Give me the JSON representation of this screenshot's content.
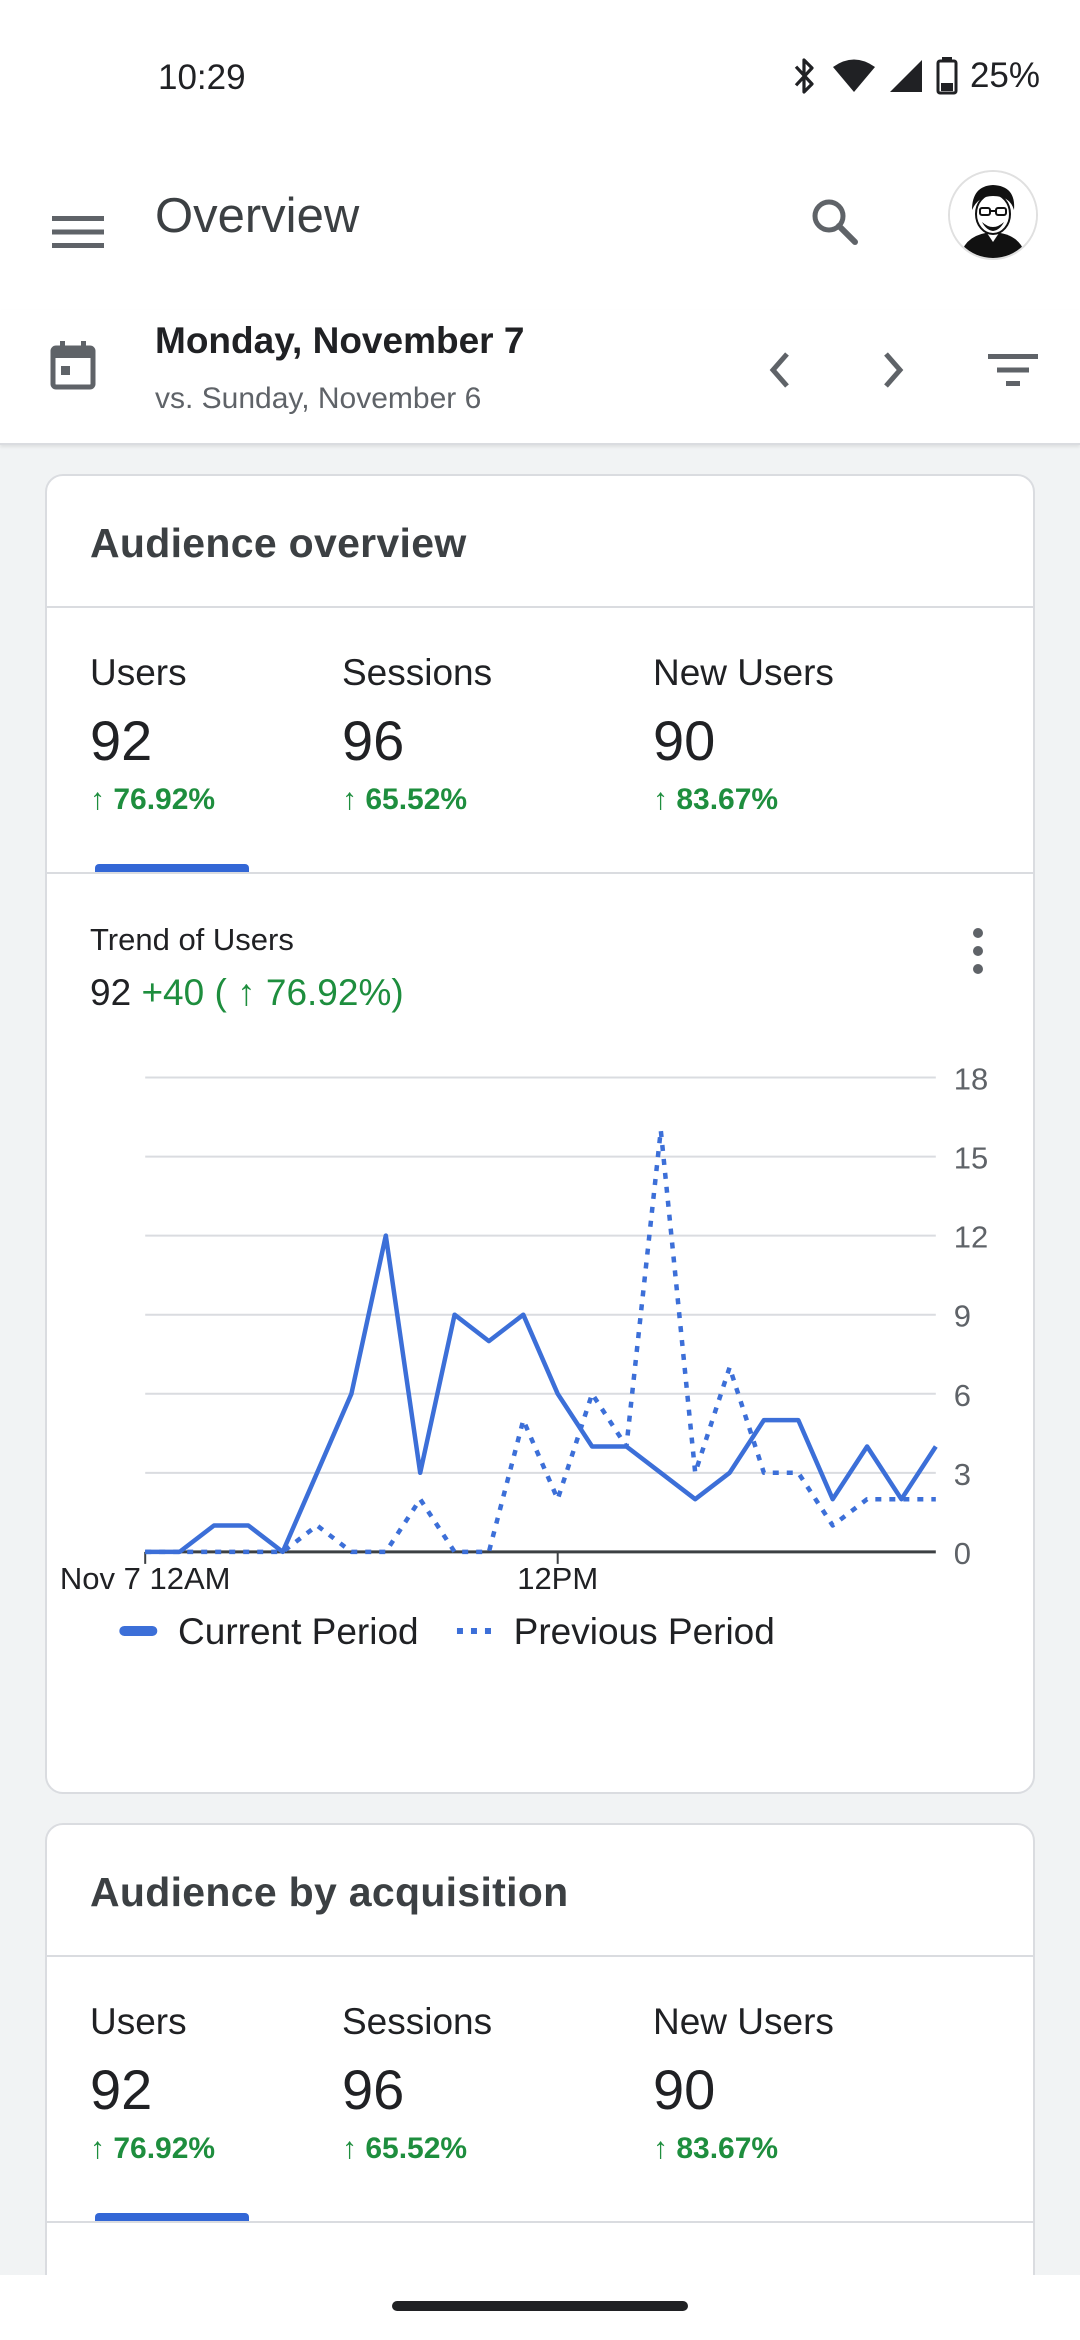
{
  "status_bar": {
    "time": "10:29",
    "battery": "25%"
  },
  "app_bar": {
    "title": "Overview"
  },
  "date_bar": {
    "date": "Monday, November 7",
    "comparison": "vs. Sunday, November 6"
  },
  "audience_overview": {
    "title": "Audience overview",
    "metrics": [
      {
        "label": "Users",
        "value": "92",
        "change": "↑ 76.92%"
      },
      {
        "label": "Sessions",
        "value": "96",
        "change": "↑ 65.52%"
      },
      {
        "label": "New Users",
        "value": "90",
        "change": "↑ 83.67%"
      }
    ],
    "trend": {
      "label": "Trend of Users",
      "value": "92",
      "delta": "+40 ( ↑ 76.92%)"
    }
  },
  "audience_by_acquisition": {
    "title": "Audience by acquisition",
    "metrics": [
      {
        "label": "Users",
        "value": "92",
        "change": "↑ 76.92%"
      },
      {
        "label": "Sessions",
        "value": "96",
        "change": "↑ 65.52%"
      },
      {
        "label": "New Users",
        "value": "90",
        "change": "↑ 83.67%"
      }
    ]
  },
  "colors": {
    "accent": "#3367d6",
    "positive": "#1e8e3e",
    "series": "#3c6fd8"
  },
  "chart_data": {
    "type": "line",
    "x": [
      0,
      1,
      2,
      3,
      4,
      5,
      6,
      7,
      8,
      9,
      10,
      11,
      12,
      13,
      14,
      15,
      16,
      17,
      18,
      19,
      20,
      21,
      22,
      23
    ],
    "xticks": [
      {
        "x": 0,
        "label": "Nov 7 12AM"
      },
      {
        "x": 12,
        "label": "12PM"
      }
    ],
    "ylim": [
      0,
      18
    ],
    "yticks": [
      0,
      3,
      6,
      9,
      12,
      15,
      18
    ],
    "yaxis_side": "right",
    "grid": true,
    "legend": "bottom-left",
    "series": [
      {
        "name": "Current Period",
        "style": "solid",
        "values": [
          0,
          0,
          1,
          1,
          0,
          3,
          6,
          12,
          3,
          9,
          8,
          9,
          6,
          4,
          4,
          3,
          2,
          3,
          5,
          5,
          2,
          4,
          2,
          4
        ]
      },
      {
        "name": "Previous Period",
        "style": "dotted",
        "values": [
          0,
          0,
          0,
          0,
          0,
          1,
          0,
          0,
          2,
          0,
          0,
          5,
          2,
          6,
          4,
          16,
          3,
          7,
          3,
          3,
          1,
          2,
          2,
          2
        ]
      }
    ]
  }
}
